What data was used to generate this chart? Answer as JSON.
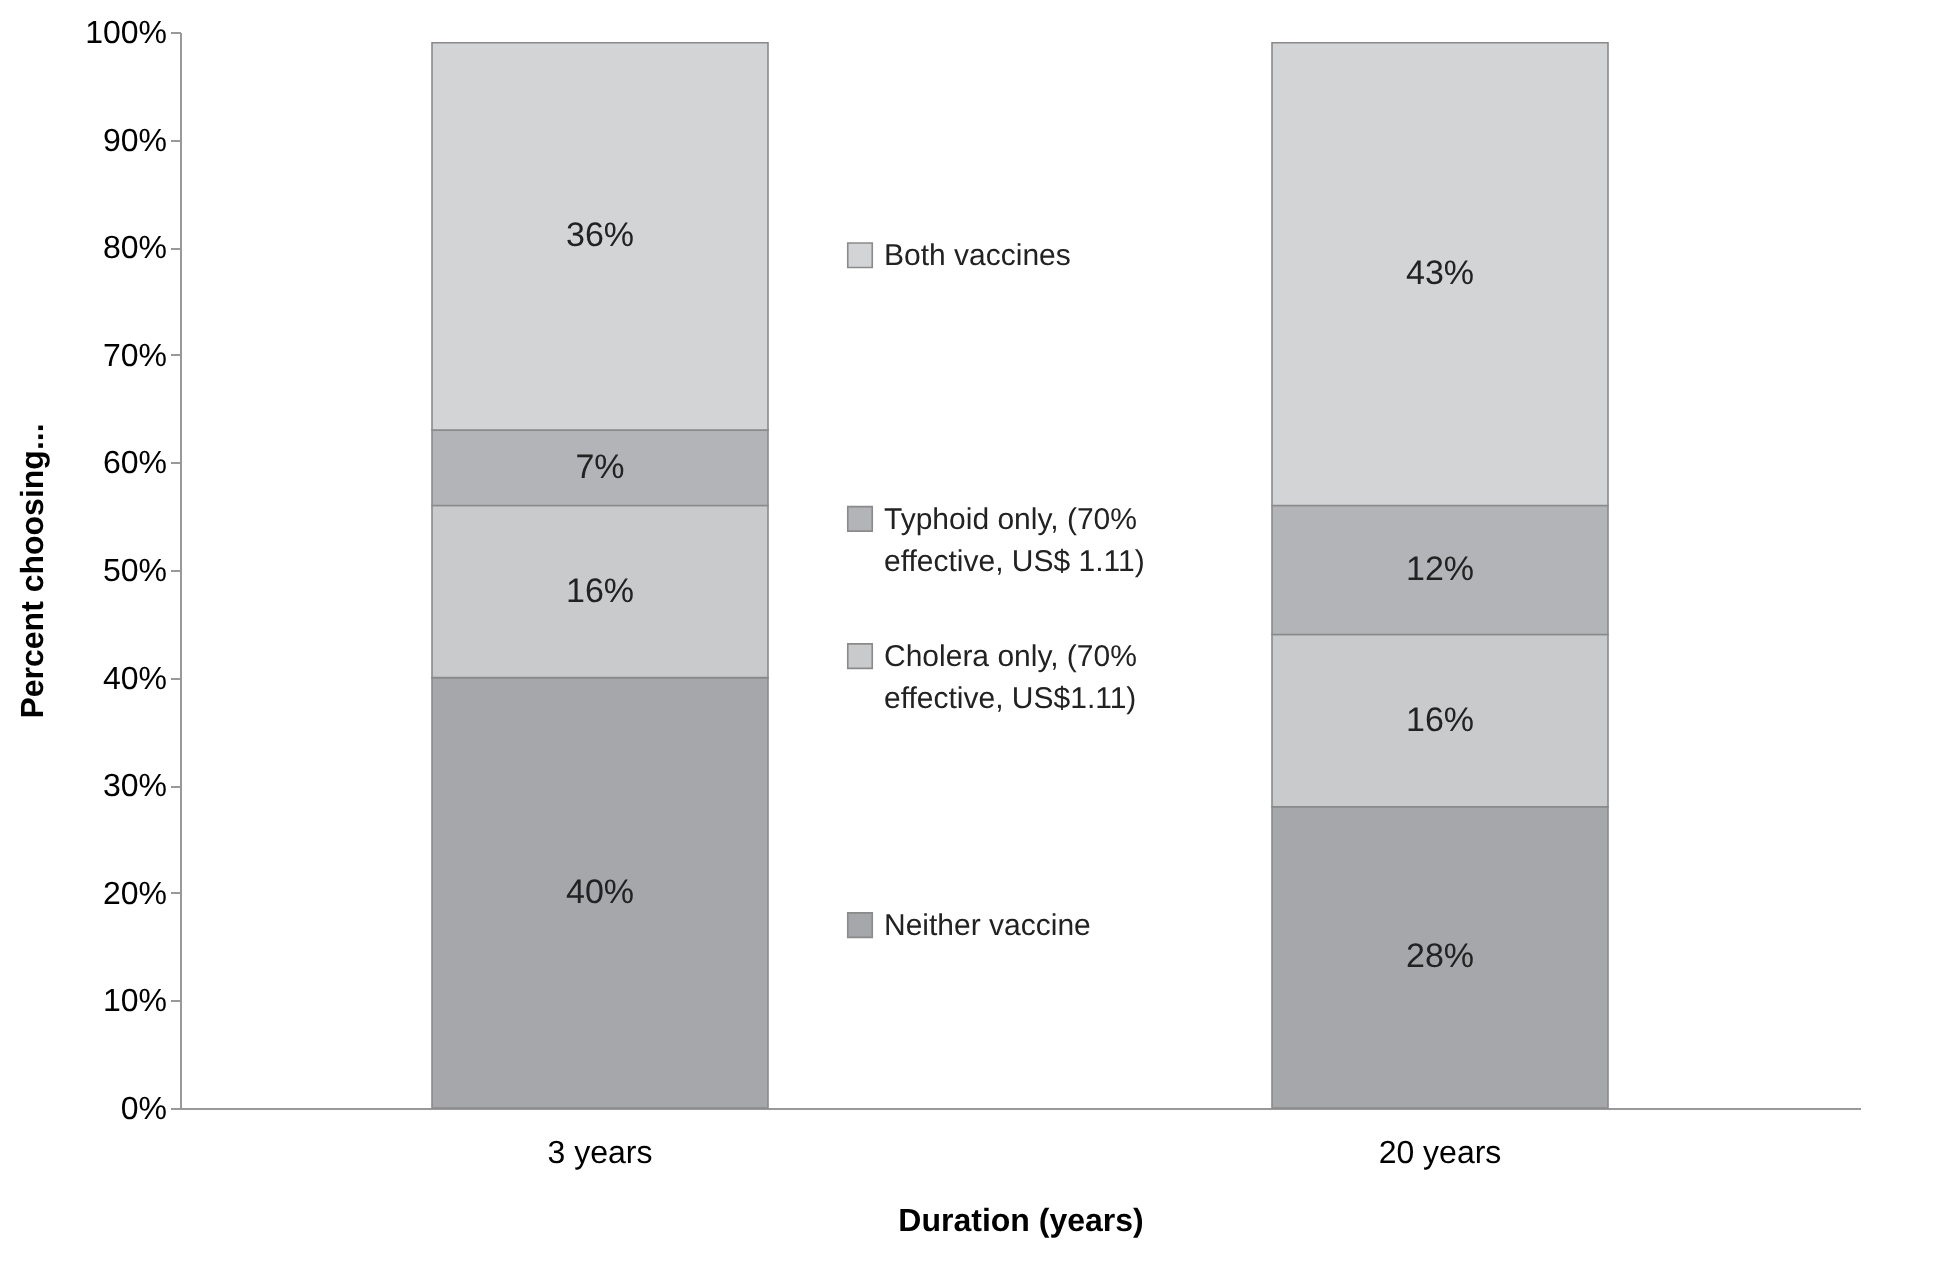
{
  "chart_data": {
    "type": "bar",
    "stacked": true,
    "xlabel": "Duration (years)",
    "ylabel": "Percent choosing...",
    "categories": [
      "3 years",
      "20 years"
    ],
    "series": [
      {
        "name": "Neither vaccine",
        "color": "#a6a7aa",
        "values": [
          40,
          28
        ],
        "value_labels": [
          "40%",
          "28%"
        ]
      },
      {
        "name": "Cholera only, (70% effective, US$1.11)",
        "color": "#c9cacc",
        "values": [
          16,
          16
        ],
        "value_labels": [
          "16%",
          "16%"
        ]
      },
      {
        "name": "Typhoid only, (70% effective, US$ 1.11)",
        "color": "#b3b4b7",
        "values": [
          7,
          12
        ],
        "value_labels": [
          "7%",
          "12%"
        ]
      },
      {
        "name": "Both vaccines",
        "color": "#d3d4d6",
        "values": [
          36,
          43
        ],
        "value_labels": [
          "36%",
          "43%"
        ]
      }
    ],
    "ylim": [
      0,
      100
    ],
    "yticks": [
      {
        "value": 0,
        "label": "0%"
      },
      {
        "value": 10,
        "label": "10%"
      },
      {
        "value": 20,
        "label": "20%"
      },
      {
        "value": 30,
        "label": "30%"
      },
      {
        "value": 40,
        "label": "40%"
      },
      {
        "value": 50,
        "label": "50%"
      },
      {
        "value": 60,
        "label": "60%"
      },
      {
        "value": 70,
        "label": "70%"
      },
      {
        "value": 80,
        "label": "80%"
      },
      {
        "value": 90,
        "label": "90%"
      },
      {
        "value": 100,
        "label": "100%"
      }
    ],
    "grid": false,
    "legend": "center"
  }
}
